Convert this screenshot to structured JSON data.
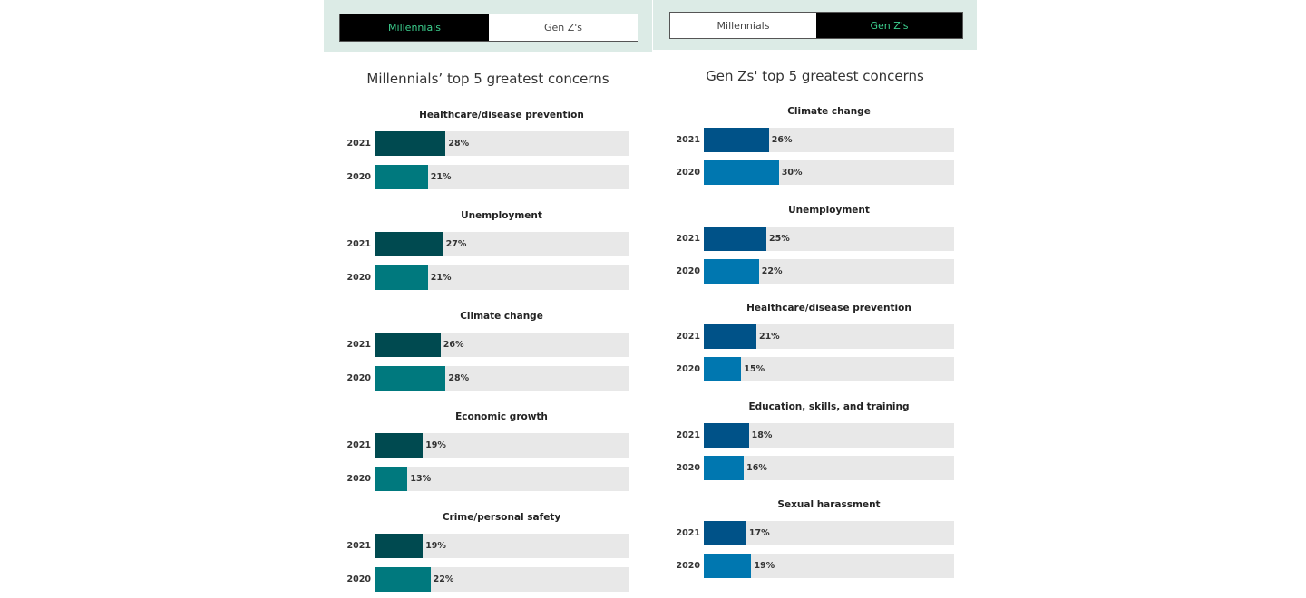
{
  "chart_data": [
    {
      "type": "bar",
      "orientation": "horizontal",
      "title": "Millennials’ top 5 greatest concerns",
      "toggle": {
        "options": [
          "Millennials",
          "Gen Z's"
        ],
        "selected": "Millennials"
      },
      "colors": {
        "2021": "#004a50",
        "2020": "#00797e",
        "track": "#e8e8e8"
      },
      "xlim": [
        0,
        100
      ],
      "unit": "%",
      "categories": [
        "Healthcare/disease prevention",
        "Unemployment",
        "Climate change",
        "Economic growth",
        "Crime/personal safety"
      ],
      "series": [
        {
          "name": "2021",
          "values": [
            28,
            27,
            26,
            19,
            19
          ]
        },
        {
          "name": "2020",
          "values": [
            21,
            21,
            28,
            13,
            22
          ]
        }
      ]
    },
    {
      "type": "bar",
      "orientation": "horizontal",
      "title": "Gen Zs' top 5 greatest concerns",
      "toggle": {
        "options": [
          "Millennials",
          "Gen Z's"
        ],
        "selected": "Gen Z's"
      },
      "colors": {
        "2021": "#005288",
        "2020": "#0077b0",
        "track": "#e8e8e8"
      },
      "xlim": [
        0,
        100
      ],
      "unit": "%",
      "categories": [
        "Climate change",
        "Unemployment",
        "Healthcare/disease prevention",
        "Education, skills, and training",
        "Sexual harassment"
      ],
      "series": [
        {
          "name": "2021",
          "values": [
            26,
            25,
            21,
            18,
            17
          ]
        },
        {
          "name": "2020",
          "values": [
            30,
            22,
            15,
            16,
            19
          ]
        }
      ]
    }
  ]
}
